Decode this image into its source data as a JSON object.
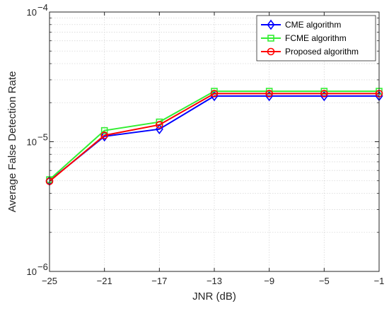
{
  "chart_data": {
    "type": "line",
    "title": "",
    "xlabel": "JNR (dB)",
    "ylabel": "Average False Detection Rate",
    "x": [
      -25,
      -21,
      -17,
      -13,
      -9,
      -5,
      -1
    ],
    "xticks": [
      "−25",
      "−21",
      "−17",
      "−13",
      "−9",
      "−5",
      "−1"
    ],
    "xlim": [
      -25,
      -1
    ],
    "yscale": "log",
    "ylim": [
      1e-06,
      0.0001
    ],
    "ytick_mantissa": "10",
    "ytick_exponents": [
      "−6",
      "−5",
      "−4"
    ],
    "grid": true,
    "legend_position": "top-right",
    "series": [
      {
        "name": "CME algorithm",
        "color": "#0000ff",
        "marker": "diamond",
        "values": [
          5e-06,
          1.1e-05,
          1.25e-05,
          2.25e-05,
          2.25e-05,
          2.25e-05,
          2.25e-05
        ]
      },
      {
        "name": "FCME algorithm",
        "color": "#33ee33",
        "marker": "square",
        "values": [
          5.1e-06,
          1.22e-05,
          1.42e-05,
          2.45e-05,
          2.45e-05,
          2.45e-05,
          2.45e-05
        ]
      },
      {
        "name": "Proposed algorithm",
        "color": "#ff0000",
        "marker": "circle",
        "values": [
          4.95e-06,
          1.12e-05,
          1.35e-05,
          2.35e-05,
          2.35e-05,
          2.35e-05,
          2.35e-05
        ]
      }
    ]
  }
}
